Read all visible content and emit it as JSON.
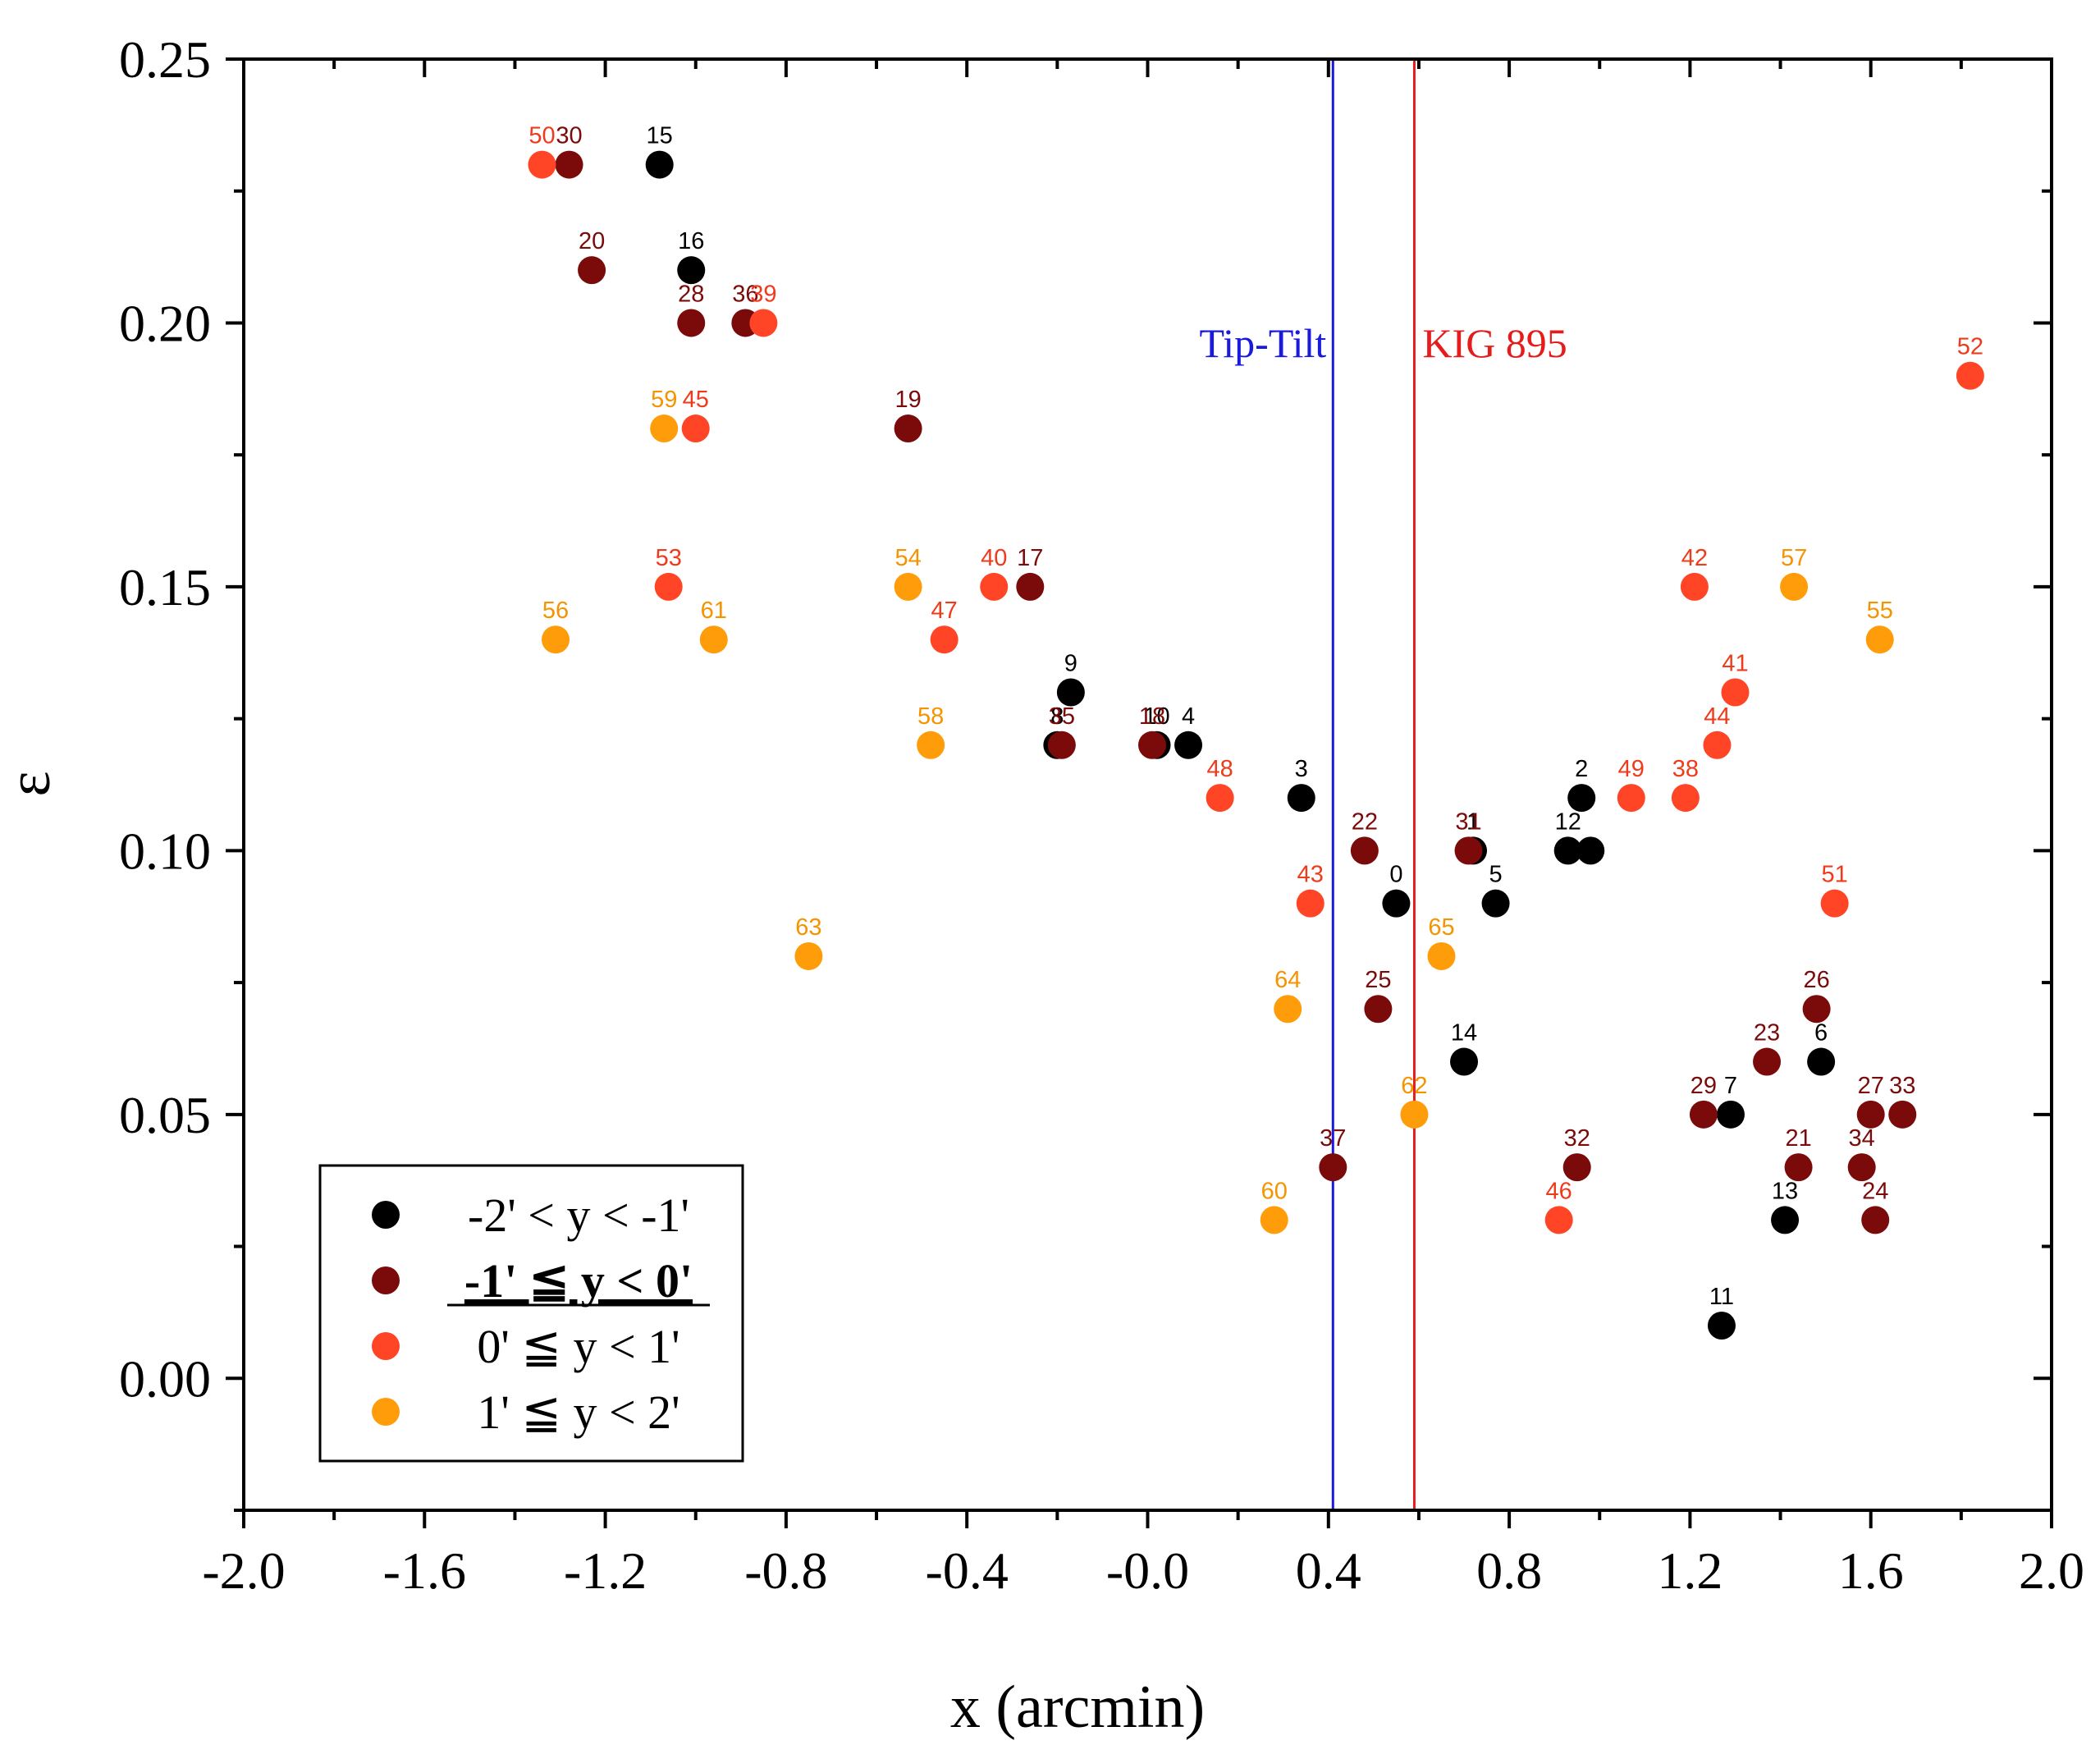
{
  "chart_data": {
    "type": "scatter",
    "title": "",
    "xlabel": "x (arcmin)",
    "ylabel": "ε",
    "xlim": [
      -2.0,
      2.0
    ],
    "ylim": [
      -0.025,
      0.25
    ],
    "xticks": [
      -2.0,
      -1.6,
      -1.2,
      -0.8,
      -0.4,
      0.0,
      0.4,
      0.8,
      1.2,
      1.6,
      2.0
    ],
    "xtick_labels": [
      "-2.0",
      "-1.6",
      "-1.2",
      "-0.8",
      "-0.4",
      "-0.0",
      "0.4",
      "0.8",
      "1.2",
      "1.6",
      "2.0"
    ],
    "yticks": [
      0.0,
      0.05,
      0.1,
      0.15,
      0.2,
      0.25
    ],
    "ytick_labels": [
      "0.00",
      "0.05",
      "0.10",
      "0.15",
      "0.20",
      "0.25"
    ],
    "grid": false,
    "legend_position": "bottom-left",
    "vertical_lines": [
      {
        "name": "Tip-Tilt",
        "x": 0.41,
        "color": "#1a1adf"
      },
      {
        "name": "KIG 895",
        "x": 0.59,
        "color": "#e51c1c"
      }
    ],
    "series": [
      {
        "name": "-2' < y < -1'",
        "color": "#000000",
        "label_color": "#000000",
        "emphasized": false,
        "points": [
          {
            "id": "0",
            "x": 0.55,
            "y": 0.09
          },
          {
            "id": "1",
            "x": 0.72,
            "y": 0.1
          },
          {
            "id": "2",
            "x": 0.96,
            "y": 0.11
          },
          {
            "id": "3",
            "x": 0.34,
            "y": 0.11
          },
          {
            "id": "4",
            "x": 0.09,
            "y": 0.12
          },
          {
            "id": "5",
            "x": 0.77,
            "y": 0.09
          },
          {
            "id": "6",
            "x": 1.49,
            "y": 0.06
          },
          {
            "id": "7",
            "x": 1.29,
            "y": 0.05
          },
          {
            "id": "8",
            "x": -0.2,
            "y": 0.12
          },
          {
            "id": "9",
            "x": -0.17,
            "y": 0.13
          },
          {
            "id": "10",
            "x": 0.02,
            "y": 0.12
          },
          {
            "id": "11",
            "x": 1.27,
            "y": 0.01
          },
          {
            "id": "12",
            "x": 0.93,
            "y": 0.1
          },
          {
            "id": "13",
            "x": 1.41,
            "y": 0.03
          },
          {
            "id": "14",
            "x": 0.7,
            "y": 0.06
          },
          {
            "id": "15",
            "x": -1.08,
            "y": 0.23
          },
          {
            "id": "16",
            "x": -1.01,
            "y": 0.21
          },
          {
            "id": "12b",
            "x": 0.98,
            "y": 0.1
          }
        ]
      },
      {
        "name": "-1' ≦ y < 0'",
        "color": "#7b0a0a",
        "label_color": "#7b0a0a",
        "emphasized": true,
        "points": [
          {
            "id": "17",
            "x": -0.26,
            "y": 0.15
          },
          {
            "id": "18",
            "x": 0.01,
            "y": 0.12
          },
          {
            "id": "19",
            "x": -0.53,
            "y": 0.18
          },
          {
            "id": "20",
            "x": -1.23,
            "y": 0.21
          },
          {
            "id": "21",
            "x": 1.44,
            "y": 0.04
          },
          {
            "id": "22",
            "x": 0.48,
            "y": 0.1
          },
          {
            "id": "23",
            "x": 1.37,
            "y": 0.06
          },
          {
            "id": "24",
            "x": 1.61,
            "y": 0.03
          },
          {
            "id": "25",
            "x": 0.51,
            "y": 0.07
          },
          {
            "id": "26",
            "x": 1.48,
            "y": 0.07
          },
          {
            "id": "27",
            "x": 1.6,
            "y": 0.05
          },
          {
            "id": "28",
            "x": -1.01,
            "y": 0.2
          },
          {
            "id": "29",
            "x": 1.23,
            "y": 0.05
          },
          {
            "id": "30",
            "x": -1.28,
            "y": 0.23
          },
          {
            "id": "31",
            "x": 0.71,
            "y": 0.1
          },
          {
            "id": "32",
            "x": 0.95,
            "y": 0.04
          },
          {
            "id": "33",
            "x": 1.67,
            "y": 0.05
          },
          {
            "id": "34",
            "x": 1.58,
            "y": 0.04
          },
          {
            "id": "35",
            "x": -0.19,
            "y": 0.12
          },
          {
            "id": "36",
            "x": -0.89,
            "y": 0.2
          },
          {
            "id": "37",
            "x": 0.41,
            "y": 0.04
          }
        ]
      },
      {
        "name": "0' ≦ y < 1'",
        "color": "#ff4525",
        "label_color": "#ee3b1c",
        "emphasized": false,
        "points": [
          {
            "id": "38",
            "x": 1.19,
            "y": 0.11
          },
          {
            "id": "39",
            "x": -0.85,
            "y": 0.2
          },
          {
            "id": "40",
            "x": -0.34,
            "y": 0.15
          },
          {
            "id": "41",
            "x": 1.3,
            "y": 0.13
          },
          {
            "id": "42",
            "x": 1.21,
            "y": 0.15
          },
          {
            "id": "43",
            "x": 0.36,
            "y": 0.09
          },
          {
            "id": "44",
            "x": 1.26,
            "y": 0.12
          },
          {
            "id": "45",
            "x": -1.0,
            "y": 0.18
          },
          {
            "id": "46",
            "x": 0.91,
            "y": 0.03
          },
          {
            "id": "47",
            "x": -0.45,
            "y": 0.14
          },
          {
            "id": "48",
            "x": 0.16,
            "y": 0.11
          },
          {
            "id": "49",
            "x": 1.07,
            "y": 0.11
          },
          {
            "id": "50",
            "x": -1.34,
            "y": 0.23
          },
          {
            "id": "51",
            "x": 1.52,
            "y": 0.09
          },
          {
            "id": "52",
            "x": 1.82,
            "y": 0.19
          },
          {
            "id": "53",
            "x": -1.06,
            "y": 0.15
          }
        ]
      },
      {
        "name": "1' ≦ y < 2'",
        "color": "#ff9c0a",
        "label_color": "#f59300",
        "emphasized": false,
        "points": [
          {
            "id": "54",
            "x": -0.53,
            "y": 0.15
          },
          {
            "id": "55",
            "x": 1.62,
            "y": 0.14
          },
          {
            "id": "56",
            "x": -1.31,
            "y": 0.14
          },
          {
            "id": "57",
            "x": 1.43,
            "y": 0.15
          },
          {
            "id": "58",
            "x": -0.48,
            "y": 0.12
          },
          {
            "id": "59",
            "x": -1.07,
            "y": 0.18
          },
          {
            "id": "60",
            "x": 0.28,
            "y": 0.03
          },
          {
            "id": "61",
            "x": -0.96,
            "y": 0.14
          },
          {
            "id": "62",
            "x": 0.59,
            "y": 0.05
          },
          {
            "id": "63",
            "x": -0.75,
            "y": 0.08
          },
          {
            "id": "64",
            "x": 0.31,
            "y": 0.07
          },
          {
            "id": "65",
            "x": 0.65,
            "y": 0.08
          }
        ]
      }
    ]
  }
}
